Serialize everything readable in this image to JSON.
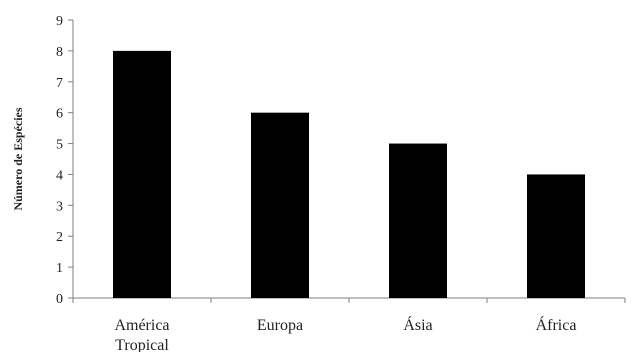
{
  "chart_data": {
    "type": "bar",
    "title": "",
    "xlabel": "",
    "ylabel": "Número de Espécies",
    "categories": [
      [
        "América",
        "Tropical"
      ],
      [
        "Europa"
      ],
      [
        "Ásia"
      ],
      [
        "África"
      ]
    ],
    "values": [
      8,
      6,
      5,
      4
    ],
    "ylim": [
      0,
      9
    ],
    "yticks": [
      "0",
      "1",
      "2",
      "3",
      "4",
      "5",
      "6",
      "7",
      "8",
      "9"
    ],
    "bar_color": "#000000",
    "axis_color": "#808080",
    "grid": false,
    "legend": "none"
  }
}
